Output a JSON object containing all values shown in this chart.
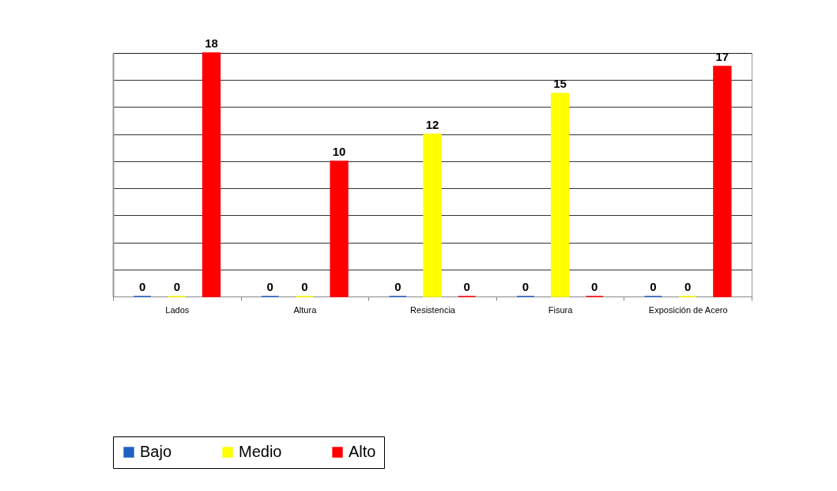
{
  "chart_data": {
    "type": "bar",
    "categories": [
      "Lados",
      "Altura",
      "Resistencia",
      "Fisura",
      "Exposición de Acero"
    ],
    "series": [
      {
        "name": "Bajo",
        "color": "#1f5fbf",
        "values": [
          0,
          0,
          0,
          0,
          0
        ]
      },
      {
        "name": "Medio",
        "color": "#ffff00",
        "values": [
          0,
          0,
          12,
          15,
          0
        ]
      },
      {
        "name": "Alto",
        "color": "#ff0000",
        "values": [
          18,
          10,
          0,
          0,
          17
        ]
      }
    ],
    "grid": "y",
    "tick_labels": "x",
    "data_labels": true,
    "legend": "bottom"
  }
}
